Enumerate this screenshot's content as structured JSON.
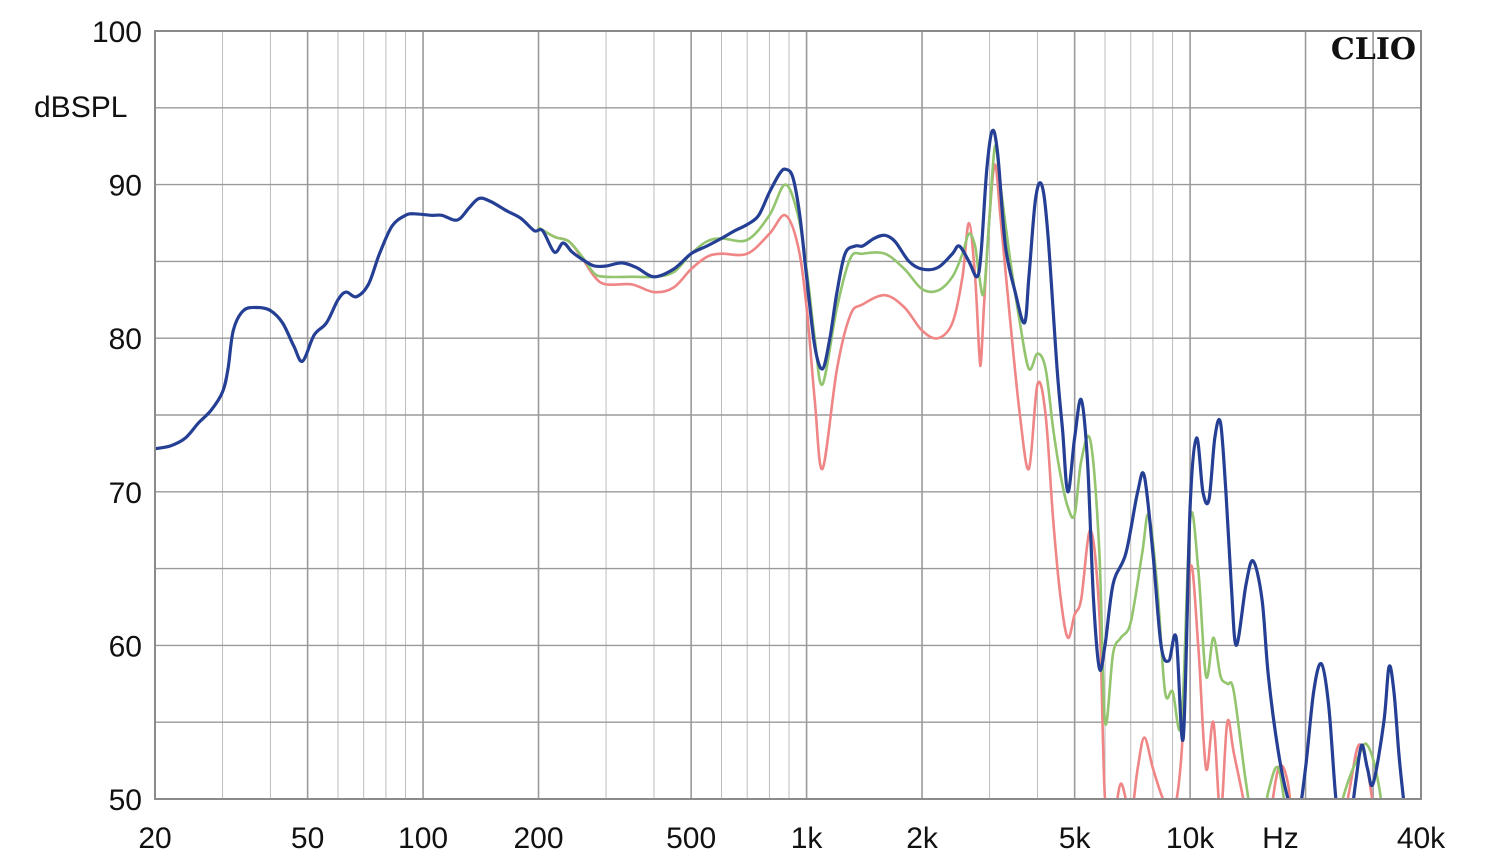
{
  "chart_data": {
    "type": "line",
    "title": "",
    "xlabel": "Hz",
    "ylabel": "dBSPL",
    "brand": "CLIO",
    "x_scale": "log",
    "xlim": [
      20,
      40000
    ],
    "ylim": [
      50,
      100
    ],
    "grid": true,
    "x_ticks": [
      {
        "value": 20,
        "label": "20"
      },
      {
        "value": 50,
        "label": "50"
      },
      {
        "value": 100,
        "label": "100"
      },
      {
        "value": 200,
        "label": "200"
      },
      {
        "value": 500,
        "label": "500"
      },
      {
        "value": 1000,
        "label": "1k"
      },
      {
        "value": 2000,
        "label": "2k"
      },
      {
        "value": 5000,
        "label": "5k"
      },
      {
        "value": 10000,
        "label": "10k"
      },
      {
        "value": 40000,
        "label": "40k"
      }
    ],
    "y_ticks": [
      {
        "value": 100,
        "label": "100"
      },
      {
        "value": 90,
        "label": "90"
      },
      {
        "value": 80,
        "label": "80"
      },
      {
        "value": 70,
        "label": "70"
      },
      {
        "value": 60,
        "label": "60"
      },
      {
        "value": 50,
        "label": "50"
      }
    ],
    "series": [
      {
        "color": "#ef8585",
        "points": [
          [
            200,
            87.2
          ],
          [
            220,
            86.6
          ],
          [
            240,
            86.3
          ],
          [
            260,
            85.2
          ],
          [
            280,
            84
          ],
          [
            300,
            83.5
          ],
          [
            350,
            83.5
          ],
          [
            400,
            83
          ],
          [
            450,
            83.3
          ],
          [
            500,
            84.5
          ],
          [
            550,
            85.3
          ],
          [
            600,
            85.5
          ],
          [
            700,
            85.5
          ],
          [
            800,
            86.8
          ],
          [
            880,
            88
          ],
          [
            950,
            86
          ],
          [
            1000,
            82
          ],
          [
            1050,
            76
          ],
          [
            1100,
            71.5
          ],
          [
            1200,
            78
          ],
          [
            1300,
            81.5
          ],
          [
            1400,
            82.2
          ],
          [
            1600,
            82.8
          ],
          [
            1800,
            82
          ],
          [
            2000,
            80.5
          ],
          [
            2200,
            80
          ],
          [
            2400,
            81
          ],
          [
            2550,
            84
          ],
          [
            2650,
            87.5
          ],
          [
            2750,
            84
          ],
          [
            2820,
            79
          ],
          [
            2850,
            78.5
          ],
          [
            2900,
            82
          ],
          [
            3000,
            88
          ],
          [
            3100,
            91.3
          ],
          [
            3200,
            88
          ],
          [
            3400,
            81
          ],
          [
            3600,
            75
          ],
          [
            3800,
            71.5
          ],
          [
            4000,
            77
          ],
          [
            4200,
            75
          ],
          [
            4400,
            68
          ],
          [
            4600,
            63
          ],
          [
            4800,
            60.5
          ],
          [
            5000,
            62
          ],
          [
            5200,
            63
          ],
          [
            5500,
            67.5
          ],
          [
            5800,
            62
          ],
          [
            6000,
            50
          ],
          [
            6300,
            48.5
          ],
          [
            6600,
            51
          ],
          [
            7000,
            49
          ],
          [
            7300,
            52
          ],
          [
            7600,
            54
          ],
          [
            8000,
            52
          ],
          [
            8500,
            50
          ],
          [
            9000,
            49
          ],
          [
            9500,
            53
          ],
          [
            10000,
            65
          ],
          [
            10500,
            60
          ],
          [
            11000,
            52
          ],
          [
            11500,
            55
          ],
          [
            12000,
            49
          ],
          [
            12500,
            55
          ],
          [
            13000,
            53
          ],
          [
            14000,
            49
          ],
          [
            15000,
            44
          ],
          [
            16000,
            48
          ],
          [
            17000,
            52
          ],
          [
            18000,
            51
          ],
          [
            19000,
            46
          ],
          [
            21000,
            44
          ],
          [
            24000,
            46
          ],
          [
            26000,
            50.5
          ],
          [
            27500,
            53.5
          ],
          [
            29000,
            52
          ],
          [
            31000,
            47
          ],
          [
            33000,
            44
          ]
        ]
      },
      {
        "color": "#93c46e",
        "points": [
          [
            200,
            87.2
          ],
          [
            220,
            86.6
          ],
          [
            240,
            86.3
          ],
          [
            260,
            85.3
          ],
          [
            280,
            84.2
          ],
          [
            300,
            84
          ],
          [
            350,
            84
          ],
          [
            400,
            84
          ],
          [
            450,
            84.3
          ],
          [
            500,
            85.5
          ],
          [
            550,
            86.3
          ],
          [
            600,
            86.5
          ],
          [
            700,
            86.4
          ],
          [
            800,
            88
          ],
          [
            880,
            90
          ],
          [
            950,
            88
          ],
          [
            1000,
            84.5
          ],
          [
            1050,
            80
          ],
          [
            1100,
            77
          ],
          [
            1200,
            82
          ],
          [
            1300,
            85.2
          ],
          [
            1400,
            85.5
          ],
          [
            1600,
            85.5
          ],
          [
            1800,
            84.5
          ],
          [
            2000,
            83.2
          ],
          [
            2200,
            83.1
          ],
          [
            2400,
            84
          ],
          [
            2550,
            85.5
          ],
          [
            2650,
            86.8
          ],
          [
            2750,
            86
          ],
          [
            2820,
            84
          ],
          [
            2900,
            83
          ],
          [
            3000,
            88
          ],
          [
            3100,
            92.5
          ],
          [
            3200,
            90
          ],
          [
            3400,
            85
          ],
          [
            3600,
            81
          ],
          [
            3800,
            78
          ],
          [
            4000,
            79
          ],
          [
            4200,
            78
          ],
          [
            4400,
            74
          ],
          [
            4600,
            71
          ],
          [
            4800,
            69
          ],
          [
            5000,
            68.5
          ],
          [
            5200,
            72
          ],
          [
            5500,
            73.3
          ],
          [
            5800,
            66
          ],
          [
            6000,
            55
          ],
          [
            6300,
            59.5
          ],
          [
            6600,
            60.5
          ],
          [
            7000,
            61.5
          ],
          [
            7500,
            66
          ],
          [
            7800,
            68.5
          ],
          [
            8200,
            64
          ],
          [
            8600,
            57
          ],
          [
            9000,
            57
          ],
          [
            9500,
            55
          ],
          [
            10000,
            68.2
          ],
          [
            10500,
            65
          ],
          [
            11000,
            58
          ],
          [
            11500,
            60.5
          ],
          [
            12000,
            58
          ],
          [
            12500,
            57.5
          ],
          [
            13000,
            57
          ],
          [
            14000,
            51
          ],
          [
            15000,
            47
          ],
          [
            16000,
            50.5
          ],
          [
            17000,
            52
          ],
          [
            18000,
            48
          ],
          [
            19000,
            45
          ],
          [
            22000,
            44
          ],
          [
            25000,
            50
          ],
          [
            27500,
            52.8
          ],
          [
            29000,
            53.5
          ],
          [
            31000,
            51
          ],
          [
            33000,
            46
          ]
        ]
      },
      {
        "color": "#253f94",
        "points": [
          [
            20,
            72.8
          ],
          [
            22,
            73
          ],
          [
            24,
            73.5
          ],
          [
            26,
            74.5
          ],
          [
            28,
            75.3
          ],
          [
            30,
            76.5
          ],
          [
            31,
            78
          ],
          [
            32,
            80.5
          ],
          [
            34,
            81.8
          ],
          [
            37,
            82
          ],
          [
            40,
            81.8
          ],
          [
            43,
            81
          ],
          [
            46,
            79.5
          ],
          [
            48.5,
            78.5
          ],
          [
            52,
            80.2
          ],
          [
            56,
            81
          ],
          [
            60,
            82.5
          ],
          [
            63,
            83
          ],
          [
            67,
            82.7
          ],
          [
            72,
            83.5
          ],
          [
            77,
            85.5
          ],
          [
            83,
            87.3
          ],
          [
            90,
            88
          ],
          [
            95,
            88.1
          ],
          [
            105,
            88
          ],
          [
            112,
            88
          ],
          [
            120,
            87.7
          ],
          [
            125,
            87.8
          ],
          [
            132,
            88.5
          ],
          [
            140,
            89.1
          ],
          [
            150,
            88.9
          ],
          [
            165,
            88.3
          ],
          [
            180,
            87.8
          ],
          [
            195,
            87
          ],
          [
            205,
            87
          ],
          [
            220,
            85.6
          ],
          [
            232,
            86.2
          ],
          [
            245,
            85.6
          ],
          [
            265,
            85
          ],
          [
            280,
            84.7
          ],
          [
            300,
            84.7
          ],
          [
            330,
            84.9
          ],
          [
            360,
            84.6
          ],
          [
            400,
            84
          ],
          [
            450,
            84.5
          ],
          [
            500,
            85.5
          ],
          [
            550,
            86
          ],
          [
            600,
            86.5
          ],
          [
            650,
            87
          ],
          [
            700,
            87.4
          ],
          [
            750,
            88
          ],
          [
            800,
            89.5
          ],
          [
            850,
            90.7
          ],
          [
            880,
            91
          ],
          [
            920,
            90.5
          ],
          [
            960,
            88
          ],
          [
            1000,
            84
          ],
          [
            1050,
            79.5
          ],
          [
            1100,
            78
          ],
          [
            1150,
            80
          ],
          [
            1200,
            83
          ],
          [
            1260,
            85.5
          ],
          [
            1340,
            86
          ],
          [
            1400,
            86
          ],
          [
            1500,
            86.5
          ],
          [
            1600,
            86.7
          ],
          [
            1700,
            86.3
          ],
          [
            1850,
            85
          ],
          [
            2000,
            84.5
          ],
          [
            2200,
            84.6
          ],
          [
            2400,
            85.5
          ],
          [
            2500,
            86
          ],
          [
            2650,
            85
          ],
          [
            2780,
            84
          ],
          [
            2850,
            85.5
          ],
          [
            2950,
            91
          ],
          [
            3050,
            93.5
          ],
          [
            3150,
            92
          ],
          [
            3300,
            86
          ],
          [
            3500,
            83
          ],
          [
            3700,
            81
          ],
          [
            3800,
            84
          ],
          [
            3950,
            89
          ],
          [
            4100,
            90
          ],
          [
            4250,
            87
          ],
          [
            4500,
            78
          ],
          [
            4650,
            74
          ],
          [
            4800,
            70
          ],
          [
            5000,
            73.5
          ],
          [
            5200,
            76
          ],
          [
            5400,
            72
          ],
          [
            5600,
            63
          ],
          [
            5800,
            58.5
          ],
          [
            6000,
            60
          ],
          [
            6300,
            64
          ],
          [
            6800,
            66
          ],
          [
            7300,
            70
          ],
          [
            7600,
            71
          ],
          [
            8000,
            66
          ],
          [
            8400,
            60
          ],
          [
            8800,
            59
          ],
          [
            9200,
            60.5
          ],
          [
            9600,
            54
          ],
          [
            10000,
            69
          ],
          [
            10400,
            73.5
          ],
          [
            10800,
            70
          ],
          [
            11200,
            69.5
          ],
          [
            11600,
            73.5
          ],
          [
            12000,
            74.5
          ],
          [
            12400,
            70
          ],
          [
            12800,
            64
          ],
          [
            13200,
            60
          ],
          [
            14000,
            64
          ],
          [
            14600,
            65.5
          ],
          [
            15400,
            63
          ],
          [
            16000,
            58
          ],
          [
            17000,
            53
          ],
          [
            18000,
            50
          ],
          [
            19000,
            48.5
          ],
          [
            20000,
            52
          ],
          [
            21000,
            57
          ],
          [
            22000,
            58.8
          ],
          [
            23000,
            56
          ],
          [
            24000,
            50
          ],
          [
            25000,
            47
          ],
          [
            26000,
            48
          ],
          [
            27000,
            51
          ],
          [
            28000,
            53.5
          ],
          [
            29000,
            52
          ],
          [
            30000,
            51
          ],
          [
            32000,
            55
          ],
          [
            33000,
            58.6
          ],
          [
            34000,
            57
          ],
          [
            35000,
            53
          ],
          [
            36000,
            50
          ]
        ]
      }
    ]
  }
}
